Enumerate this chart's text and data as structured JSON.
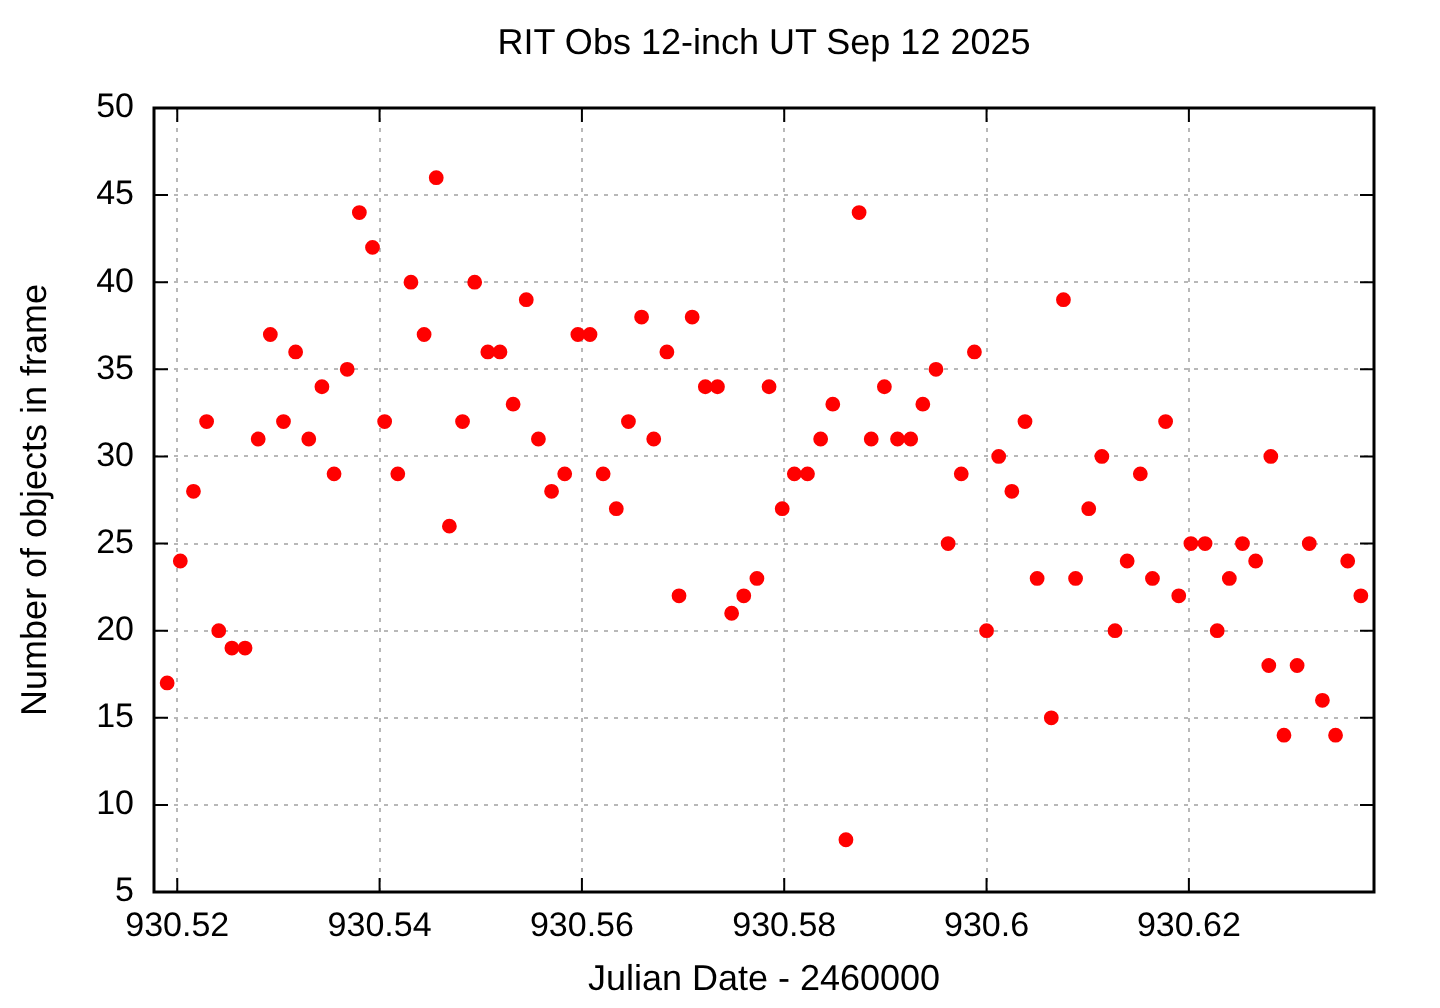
{
  "chart_data": {
    "type": "scatter",
    "title": "RIT Obs 12-inch UT Sep 12 2025",
    "xlabel": "Julian Date - 2460000",
    "ylabel": "Number of objects in frame",
    "x": [
      930.519,
      930.5203,
      930.5216,
      930.5229,
      930.5241,
      930.5254,
      930.5267,
      930.528,
      930.5292,
      930.5305,
      930.5317,
      930.533,
      930.5343,
      930.5355,
      930.5368,
      930.538,
      930.5393,
      930.5405,
      930.5418,
      930.5431,
      930.5444,
      930.5456,
      930.5469,
      930.5482,
      930.5494,
      930.5507,
      930.5519,
      930.5532,
      930.5545,
      930.5557,
      930.557,
      930.5583,
      930.5596,
      930.5608,
      930.5621,
      930.5634,
      930.5646,
      930.5659,
      930.5671,
      930.5684,
      930.5696,
      930.5709,
      930.5722,
      930.5734,
      930.5748,
      930.576,
      930.5773,
      930.5785,
      930.5798,
      930.581,
      930.5823,
      930.5836,
      930.5848,
      930.5861,
      930.5874,
      930.5886,
      930.5899,
      930.5912,
      930.5925,
      930.5937,
      930.595,
      930.5962,
      930.5975,
      930.5988,
      930.6,
      930.6012,
      930.6025,
      930.6038,
      930.605,
      930.6064,
      930.6076,
      930.6088,
      930.6101,
      930.6114,
      930.6127,
      930.6139,
      930.6152,
      930.6164,
      930.6177,
      930.619,
      930.6202,
      930.6216,
      930.6228,
      930.624,
      930.6253,
      930.6266,
      930.6279,
      930.6281,
      930.6294,
      930.6307,
      930.6319,
      930.6332,
      930.6345,
      930.6357,
      930.637
    ],
    "values": [
      17,
      24,
      28,
      32,
      20,
      19,
      19,
      31,
      37,
      32,
      36,
      31,
      34,
      29,
      35,
      44,
      42,
      32,
      29,
      40,
      37,
      46,
      26,
      32,
      40,
      36,
      36,
      33,
      39,
      31,
      28,
      29,
      37,
      37,
      29,
      27,
      32,
      38,
      31,
      36,
      22,
      38,
      34,
      34,
      21,
      22,
      23,
      34,
      27,
      29,
      29,
      31,
      33,
      8,
      44,
      31,
      34,
      31,
      31,
      33,
      35,
      25,
      29,
      36,
      20,
      30,
      28,
      32,
      23,
      15,
      39,
      23,
      27,
      30,
      20,
      24,
      29,
      23,
      32,
      22,
      25,
      25,
      20,
      23,
      25,
      24,
      18,
      30,
      14,
      18,
      25,
      16,
      14,
      24,
      22
    ],
    "color": "#ff0000",
    "marker": "circle",
    "grid": true,
    "xlim": [
      930.5177,
      930.6383
    ],
    "xticks": [
      930.52,
      930.54,
      930.56,
      930.58,
      930.6,
      930.62
    ],
    "ylim": [
      5,
      50
    ],
    "yticks": [
      5,
      10,
      15,
      20,
      25,
      30,
      35,
      40,
      45,
      50
    ]
  }
}
